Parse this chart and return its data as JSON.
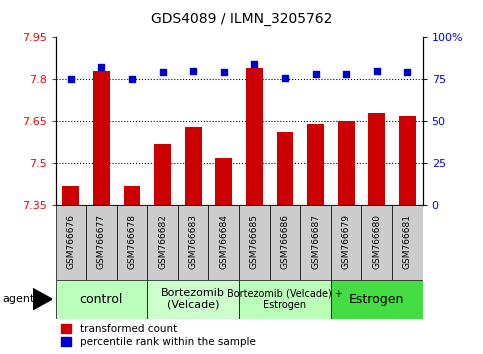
{
  "title": "GDS4089 / ILMN_3205762",
  "samples": [
    "GSM766676",
    "GSM766677",
    "GSM766678",
    "GSM766682",
    "GSM766683",
    "GSM766684",
    "GSM766685",
    "GSM766686",
    "GSM766687",
    "GSM766679",
    "GSM766680",
    "GSM766681"
  ],
  "red_values": [
    7.42,
    7.83,
    7.42,
    7.57,
    7.63,
    7.52,
    7.84,
    7.61,
    7.64,
    7.65,
    7.68,
    7.67
  ],
  "blue_values": [
    75,
    82,
    75,
    79,
    80,
    79,
    84,
    76,
    78,
    78,
    80,
    79
  ],
  "ylim_left": [
    7.35,
    7.95
  ],
  "ylim_right": [
    0,
    100
  ],
  "yticks_left": [
    7.35,
    7.5,
    7.65,
    7.8,
    7.95
  ],
  "ytick_labels_left": [
    "7.35",
    "7.5",
    "7.65",
    "7.8",
    "7.95"
  ],
  "yticks_right": [
    0,
    25,
    50,
    75,
    100
  ],
  "ytick_labels_right": [
    "0",
    "25",
    "50",
    "75",
    "100%"
  ],
  "hlines": [
    7.5,
    7.65,
    7.8
  ],
  "groups": [
    {
      "label": "control",
      "start": 0,
      "end": 2,
      "color": "#bbffbb",
      "fontsize": 9
    },
    {
      "label": "Bortezomib\n(Velcade)",
      "start": 3,
      "end": 5,
      "color": "#ccffcc",
      "fontsize": 8
    },
    {
      "label": "Bortezomib (Velcade) +\nEstrogen",
      "start": 6,
      "end": 8,
      "color": "#bbffbb",
      "fontsize": 7
    },
    {
      "label": "Estrogen",
      "start": 9,
      "end": 11,
      "color": "#44dd44",
      "fontsize": 9
    }
  ],
  "agent_label": "agent",
  "legend_red": "transformed count",
  "legend_blue": "percentile rank within the sample",
  "bar_color": "#cc0000",
  "dot_color": "#0000cc",
  "bar_width": 0.55,
  "bar_bottom": 7.35,
  "sample_box_color": "#cccccc",
  "title_fontsize": 10
}
